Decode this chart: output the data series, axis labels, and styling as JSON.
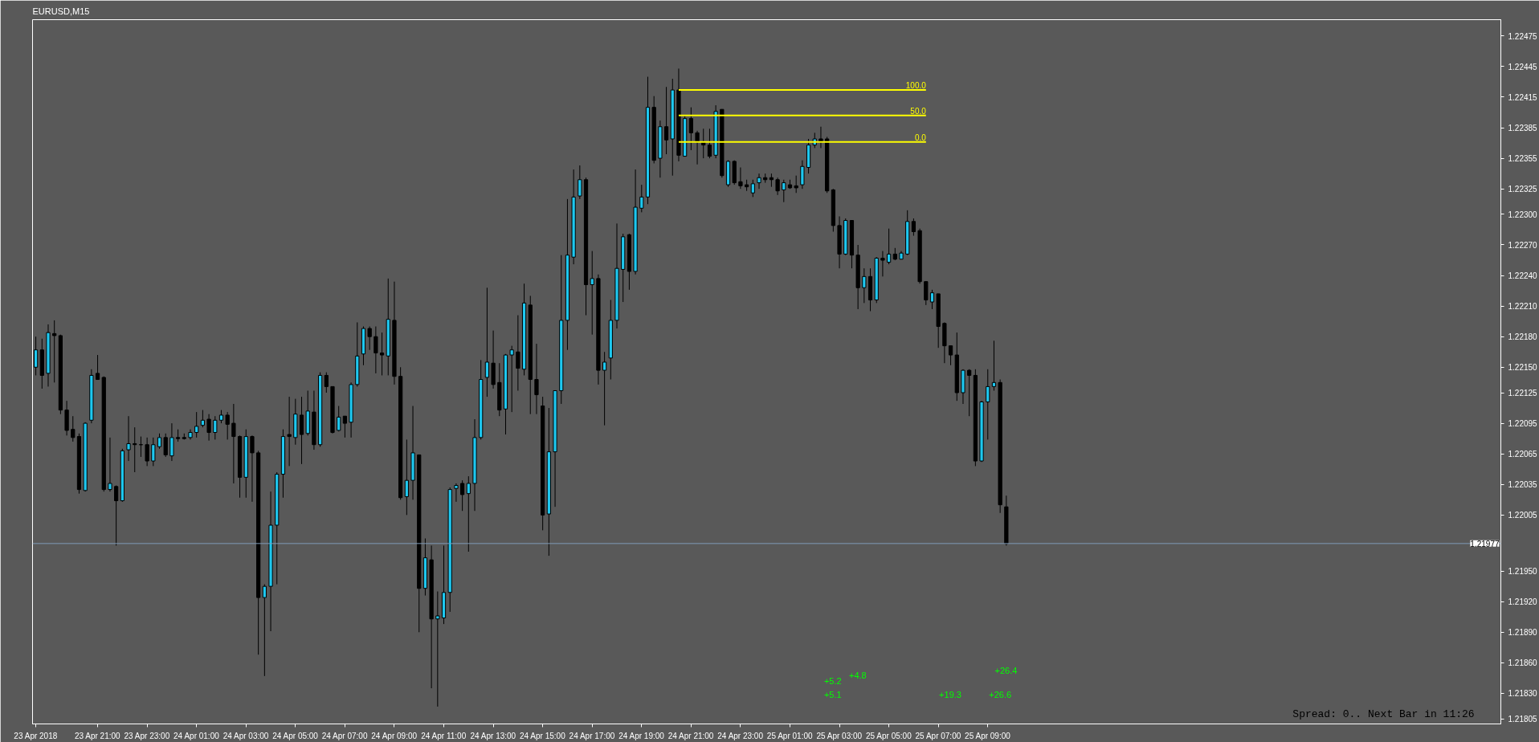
{
  "chart_data": {
    "type": "candlestick",
    "title": "EURUSD,M15",
    "colors": [
      "#1ec8f0",
      "#000000",
      "#1ec8f0",
      "#000000",
      "#000000",
      "#000000",
      "#000000",
      "#000000",
      "#1ec8f0",
      "#1ec8f0",
      "#000000",
      "#000000",
      "#1ec8f0",
      "#000000",
      "#1ec8f0",
      "#1ec8f0",
      "#000000",
      "#000000",
      "#000000",
      "#1ec8f0",
      "#1ec8f0",
      "#000000",
      "#1ec8f0",
      "#000000",
      "#000000",
      "#1ec8f0",
      "#1ec8f0",
      "#1ec8f0",
      "#000000",
      "#1ec8f0",
      "#1ec8f0",
      "#000000",
      "#000000",
      "#000000",
      "#1ec8f0",
      "#000000",
      "#000000",
      "#1ec8f0",
      "#1ec8f0",
      "#1ec8f0",
      "#1ec8f0",
      "#000000",
      "#1ec8f0",
      "#000000",
      "#1ec8f0",
      "#000000",
      "#1ec8f0",
      "#000000",
      "#000000",
      "#1ec8f0",
      "#000000",
      "#1ec8f0",
      "#1ec8f0",
      "#1ec8f0",
      "#000000",
      "#000000",
      "#000000",
      "#1ec8f0",
      "#000000",
      "#000000",
      "#1ec8f0",
      "#1ec8f0",
      "#000000",
      "#1ec8f0",
      "#000000",
      "#1ec8f0",
      "#1ec8f0",
      "#1ec8f0",
      "#1ec8f0",
      "#000000",
      "#1ec8f0",
      "#1ec8f0",
      "#1ec8f0",
      "#1ec8f0",
      "#000000",
      "#000000",
      "#1ec8f0",
      "#1ec8f0",
      "#000000",
      "#1ec8f0",
      "#000000",
      "#000000",
      "#000000",
      "#1ec8f0",
      "#1ec8f0",
      "#1ec8f0",
      "#1ec8f0",
      "#1ec8f0",
      "#1ec8f0",
      "#000000",
      "#1ec8f0",
      "#000000",
      "#1ec8f0",
      "#1ec8f0",
      "#1ec8f0",
      "#1ec8f0",
      "#000000",
      "#1ec8f0",
      "#1ec8f0",
      "#1ec8f0",
      "#000000",
      "#1ec8f0",
      "#000000",
      "#1ec8f0",
      "#000000",
      "#1ec8f0",
      "#000000",
      "#000000",
      "#000000",
      "#000000",
      "#1ec8f0",
      "#000000",
      "#1ec8f0",
      "#000000",
      "#000000",
      "#000000",
      "#1ec8f0",
      "#1ec8f0",
      "#000000",
      "#000000",
      "#000000",
      "#1ec8f0",
      "#000000",
      "#000000",
      "#1ec8f0",
      "#1ec8f0",
      "#1ec8f0",
      "#000000",
      "#000000",
      "#000000",
      "#000000",
      "#1ec8f0",
      "#000000",
      "#000000",
      "#1ec8f0",
      "#000000",
      "#1ec8f0",
      "#000000",
      "#1ec8f0",
      "#000000",
      "#1ec8f0",
      "#1ec8f0",
      "#000000",
      "#000000",
      "#000000",
      "#1ec8f0",
      "#000000",
      "#000000",
      "#000000",
      "#000000",
      "#1ec8f0",
      "#000000",
      "#000000",
      "#1ec8f0",
      "#1ec8f0",
      "#1ec8f0",
      "#000000",
      "#000000"
    ],
    "x": [
      "2018-04-23T18:30",
      "2018-04-23T18:45",
      "2018-04-23T19:00",
      "2018-04-23T19:15",
      "2018-04-23T19:30",
      "2018-04-23T19:45",
      "2018-04-23T20:00",
      "2018-04-23T20:15",
      "2018-04-23T20:30",
      "2018-04-23T20:45",
      "2018-04-23T21:00",
      "2018-04-23T21:15",
      "2018-04-23T21:30",
      "2018-04-23T21:45",
      "2018-04-23T22:00",
      "2018-04-23T22:15",
      "2018-04-23T22:30",
      "2018-04-23T22:45",
      "2018-04-23T23:00",
      "2018-04-23T23:15",
      "2018-04-23T23:30",
      "2018-04-23T23:45",
      "2018-04-24T00:00",
      "2018-04-24T00:15",
      "2018-04-24T00:30",
      "2018-04-24T00:45",
      "2018-04-24T01:00",
      "2018-04-24T01:15",
      "2018-04-24T01:30",
      "2018-04-24T01:45",
      "2018-04-24T02:00",
      "2018-04-24T02:15",
      "2018-04-24T02:30",
      "2018-04-24T02:45",
      "2018-04-24T03:00",
      "2018-04-24T03:15",
      "2018-04-24T03:30",
      "2018-04-24T03:45",
      "2018-04-24T04:00",
      "2018-04-24T04:15",
      "2018-04-24T04:30",
      "2018-04-24T04:45",
      "2018-04-24T05:00",
      "2018-04-24T05:15",
      "2018-04-24T05:30",
      "2018-04-24T05:45",
      "2018-04-24T06:00",
      "2018-04-24T06:15",
      "2018-04-24T06:30",
      "2018-04-24T06:45",
      "2018-04-24T07:00",
      "2018-04-24T07:15",
      "2018-04-24T07:30",
      "2018-04-24T07:45",
      "2018-04-24T08:00",
      "2018-04-24T08:15",
      "2018-04-24T08:30",
      "2018-04-24T08:45",
      "2018-04-24T09:00",
      "2018-04-24T09:15",
      "2018-04-24T09:30",
      "2018-04-24T09:45",
      "2018-04-24T10:00",
      "2018-04-24T10:15",
      "2018-04-24T10:30",
      "2018-04-24T10:45",
      "2018-04-24T11:00",
      "2018-04-24T11:15",
      "2018-04-24T11:30",
      "2018-04-24T11:45",
      "2018-04-24T12:00",
      "2018-04-24T12:15",
      "2018-04-24T12:30",
      "2018-04-24T12:45",
      "2018-04-24T13:00",
      "2018-04-24T13:15",
      "2018-04-24T13:30",
      "2018-04-24T13:45",
      "2018-04-24T14:00",
      "2018-04-24T14:15",
      "2018-04-24T14:30",
      "2018-04-24T14:45",
      "2018-04-24T15:00",
      "2018-04-24T15:15",
      "2018-04-24T15:30",
      "2018-04-24T15:45",
      "2018-04-24T16:00",
      "2018-04-24T16:15",
      "2018-04-24T16:30",
      "2018-04-24T16:45",
      "2018-04-24T17:00",
      "2018-04-24T17:15",
      "2018-04-24T17:30",
      "2018-04-24T17:45",
      "2018-04-24T18:00",
      "2018-04-24T18:15",
      "2018-04-24T18:30",
      "2018-04-24T18:45",
      "2018-04-24T19:00",
      "2018-04-24T19:15",
      "2018-04-24T19:30",
      "2018-04-24T19:45",
      "2018-04-24T20:00",
      "2018-04-24T20:15",
      "2018-04-24T20:30",
      "2018-04-24T20:45",
      "2018-04-24T21:00",
      "2018-04-24T21:15",
      "2018-04-24T21:30",
      "2018-04-24T21:45",
      "2018-04-24T22:00",
      "2018-04-24T22:15",
      "2018-04-24T22:30",
      "2018-04-24T22:45",
      "2018-04-24T23:00",
      "2018-04-24T23:15",
      "2018-04-24T23:30",
      "2018-04-24T23:45",
      "2018-04-25T00:00",
      "2018-04-25T00:15",
      "2018-04-25T00:30",
      "2018-04-25T00:45",
      "2018-04-25T01:00",
      "2018-04-25T01:15",
      "2018-04-25T01:30",
      "2018-04-25T01:45",
      "2018-04-25T02:00",
      "2018-04-25T02:15",
      "2018-04-25T02:30",
      "2018-04-25T02:45",
      "2018-04-25T03:00",
      "2018-04-25T03:15",
      "2018-04-25T03:30",
      "2018-04-25T03:45",
      "2018-04-25T04:00",
      "2018-04-25T04:15",
      "2018-04-25T04:30",
      "2018-04-25T04:45",
      "2018-04-25T05:00",
      "2018-04-25T05:15",
      "2018-04-25T05:30",
      "2018-04-25T05:45",
      "2018-04-25T06:00",
      "2018-04-25T06:15",
      "2018-04-25T06:30",
      "2018-04-25T06:45",
      "2018-04-25T07:00",
      "2018-04-25T07:15",
      "2018-04-25T07:30",
      "2018-04-25T07:45",
      "2018-04-25T08:00",
      "2018-04-25T08:15",
      "2018-04-25T08:30",
      "2018-04-25T08:45",
      "2018-04-25T09:00",
      "2018-04-25T09:15",
      "2018-04-25T09:30",
      "2018-04-25T09:45"
    ],
    "ohlc": [
      [
        1.2215,
        1.2218,
        1.22142,
        1.22167
      ],
      [
        1.22167,
        1.22178,
        1.22129,
        1.22142
      ],
      [
        1.22144,
        1.22192,
        1.22131,
        1.22184
      ],
      [
        1.22183,
        1.22196,
        1.22135,
        1.22181
      ],
      [
        1.22181,
        1.22182,
        1.22104,
        1.22108
      ],
      [
        1.22108,
        1.22117,
        1.22083,
        1.22088
      ],
      [
        1.22089,
        1.22102,
        1.22077,
        1.22081
      ],
      [
        1.22082,
        1.22085,
        1.22026,
        1.2203
      ],
      [
        1.22029,
        1.22096,
        1.22028,
        1.22095
      ],
      [
        1.22098,
        1.22148,
        1.22095,
        1.22142
      ],
      [
        1.22144,
        1.22162,
        1.22138,
        1.22138
      ],
      [
        1.2214,
        1.22141,
        1.22028,
        1.2203
      ],
      [
        1.2203,
        1.22081,
        1.22028,
        1.22036
      ],
      [
        1.22033,
        1.22034,
        1.21975,
        1.22019
      ],
      [
        1.22019,
        1.2207,
        1.22018,
        1.22068
      ],
      [
        1.22069,
        1.22102,
        1.22058,
        1.22075
      ],
      [
        1.22075,
        1.22091,
        1.22047,
        1.22074
      ],
      [
        1.22074,
        1.22082,
        1.22062,
        1.22074
      ],
      [
        1.22074,
        1.22081,
        1.22053,
        1.22058
      ],
      [
        1.22058,
        1.22081,
        1.22053,
        1.22074
      ],
      [
        1.22072,
        1.22085,
        1.2207,
        1.22081
      ],
      [
        1.22081,
        1.22085,
        1.22062,
        1.22064
      ],
      [
        1.22063,
        1.22095,
        1.22058,
        1.22081
      ],
      [
        1.22081,
        1.22089,
        1.22077,
        1.2208
      ],
      [
        1.22081,
        1.22085,
        1.22079,
        1.2208
      ],
      [
        1.22081,
        1.22089,
        1.22079,
        1.22086
      ],
      [
        1.22086,
        1.22106,
        1.22081,
        1.22092
      ],
      [
        1.22093,
        1.22108,
        1.22091,
        1.22098
      ],
      [
        1.22099,
        1.22104,
        1.22078,
        1.22086
      ],
      [
        1.22086,
        1.22102,
        1.22079,
        1.22098
      ],
      [
        1.22098,
        1.22108,
        1.22095,
        1.22103
      ],
      [
        1.22103,
        1.22106,
        1.22079,
        1.22094
      ],
      [
        1.22095,
        1.22114,
        1.22036,
        1.22082
      ],
      [
        1.22082,
        1.22083,
        1.22022,
        1.22042
      ],
      [
        1.22042,
        1.22089,
        1.22022,
        1.22082
      ],
      [
        1.22082,
        1.22083,
        1.22018,
        1.22066
      ],
      [
        1.22066,
        1.22068,
        1.21868,
        1.21924
      ],
      [
        1.21924,
        1.21937,
        1.21847,
        1.21935
      ],
      [
        1.21935,
        1.22028,
        1.21891,
        1.21995
      ],
      [
        1.21995,
        1.22047,
        1.21937,
        1.22045
      ],
      [
        1.22045,
        1.22089,
        1.22022,
        1.22082
      ],
      [
        1.22084,
        1.22121,
        1.22053,
        1.22082
      ],
      [
        1.22081,
        1.22119,
        1.22074,
        1.22104
      ],
      [
        1.22103,
        1.22121,
        1.22055,
        1.22084
      ],
      [
        1.22085,
        1.22127,
        1.22083,
        1.22107
      ],
      [
        1.22106,
        1.22127,
        1.22069,
        1.22074
      ],
      [
        1.22074,
        1.22145,
        1.22072,
        1.22142
      ],
      [
        1.22142,
        1.22145,
        1.22125,
        1.22131
      ],
      [
        1.22131,
        1.22131,
        1.22085,
        1.22086
      ],
      [
        1.22088,
        1.22112,
        1.22087,
        1.22101
      ],
      [
        1.22102,
        1.22102,
        1.22081,
        1.22095
      ],
      [
        1.22096,
        1.22135,
        1.22081,
        1.22133
      ],
      [
        1.22133,
        1.22194,
        1.22131,
        1.22161
      ],
      [
        1.22163,
        1.2219,
        1.22152,
        1.22188
      ],
      [
        1.22188,
        1.2219,
        1.22167,
        1.2218
      ],
      [
        1.2218,
        1.2219,
        1.22144,
        1.22164
      ],
      [
        1.22164,
        1.22184,
        1.22142,
        1.22162
      ],
      [
        1.22161,
        1.22237,
        1.22142,
        1.22197
      ],
      [
        1.22196,
        1.22234,
        1.22133,
        1.22141
      ],
      [
        1.22141,
        1.2215,
        1.2202,
        1.22022
      ],
      [
        1.22023,
        1.22079,
        1.22005,
        1.22039
      ],
      [
        1.22039,
        1.22112,
        1.2202,
        1.22066
      ],
      [
        1.22064,
        1.22064,
        1.2189,
        1.21933
      ],
      [
        1.21933,
        1.21982,
        1.21926,
        1.21963
      ],
      [
        1.21961,
        1.21975,
        1.21835,
        1.21903
      ],
      [
        1.21903,
        1.2193,
        1.21817,
        1.21906
      ],
      [
        1.21904,
        1.21975,
        1.21898,
        1.21929
      ],
      [
        1.21929,
        1.22032,
        1.2191,
        1.2203
      ],
      [
        1.22031,
        1.22036,
        1.22018,
        1.22034
      ],
      [
        1.22036,
        1.22039,
        1.22009,
        1.22025
      ],
      [
        1.22026,
        1.22043,
        1.21969,
        1.22036
      ],
      [
        1.22036,
        1.22099,
        1.22009,
        1.22081
      ],
      [
        1.22081,
        1.22157,
        1.22079,
        1.22138
      ],
      [
        1.2214,
        1.22228,
        1.22121,
        1.22155
      ],
      [
        1.22154,
        1.22186,
        1.22129,
        1.22133
      ],
      [
        1.22135,
        1.22154,
        1.22102,
        1.22108
      ],
      [
        1.22109,
        1.22163,
        1.22084,
        1.22162
      ],
      [
        1.22162,
        1.22171,
        1.22106,
        1.22167
      ],
      [
        1.22165,
        1.22201,
        1.22127,
        1.22149
      ],
      [
        1.22148,
        1.22232,
        1.22142,
        1.22213
      ],
      [
        1.22211,
        1.2222,
        1.22104,
        1.22138
      ],
      [
        1.22138,
        1.22173,
        1.22104,
        1.22123
      ],
      [
        1.22112,
        1.22121,
        1.2199,
        1.22005
      ],
      [
        1.22006,
        1.2211,
        1.21965,
        1.22067
      ],
      [
        1.22067,
        1.22127,
        1.22013,
        1.22127
      ],
      [
        1.22127,
        1.2226,
        1.22114,
        1.22196
      ],
      [
        1.22196,
        1.22315,
        1.22167,
        1.2226
      ],
      [
        1.22258,
        1.22344,
        1.22251,
        1.22317
      ],
      [
        1.22318,
        1.22348,
        1.22315,
        1.22334
      ],
      [
        1.22334,
        1.22336,
        1.22201,
        1.22231
      ],
      [
        1.22231,
        1.22264,
        1.22182,
        1.22237
      ],
      [
        1.22237,
        1.22241,
        1.22133,
        1.22147
      ],
      [
        1.22147,
        1.22165,
        1.22093,
        1.22155
      ],
      [
        1.22159,
        1.22216,
        1.22138,
        1.22196
      ],
      [
        1.22196,
        1.22291,
        1.22188,
        1.22247
      ],
      [
        1.22246,
        1.22281,
        1.22214,
        1.22278
      ],
      [
        1.2228,
        1.22281,
        1.22226,
        1.22244
      ],
      [
        1.22244,
        1.22344,
        1.22241,
        1.22307
      ],
      [
        1.22306,
        1.22329,
        1.22302,
        1.22317
      ],
      [
        1.22317,
        1.22435,
        1.2231,
        1.22405
      ],
      [
        1.22405,
        1.22416,
        1.2235,
        1.22353
      ],
      [
        1.22355,
        1.22392,
        1.22336,
        1.22386
      ],
      [
        1.22386,
        1.22425,
        1.22359,
        1.22373
      ],
      [
        1.22374,
        1.22433,
        1.22338,
        1.22422
      ],
      [
        1.22422,
        1.22443,
        1.22352,
        1.22358
      ],
      [
        1.22357,
        1.22397,
        1.22357,
        1.22394
      ],
      [
        1.22394,
        1.22405,
        1.22363,
        1.2238
      ],
      [
        1.2238,
        1.22382,
        1.22349,
        1.22371
      ],
      [
        1.22371,
        1.22384,
        1.22355,
        1.22368
      ],
      [
        1.22368,
        1.22384,
        1.22355,
        1.22357
      ],
      [
        1.22358,
        1.22407,
        1.22355,
        1.22401
      ],
      [
        1.22403,
        1.22403,
        1.22336,
        1.22338
      ],
      [
        1.22329,
        1.22353,
        1.22327,
        1.22352
      ],
      [
        1.22352,
        1.22353,
        1.22329,
        1.22331
      ],
      [
        1.22332,
        1.22346,
        1.22325,
        1.22328
      ],
      [
        1.22329,
        1.22334,
        1.22323,
        1.22327
      ],
      [
        1.22321,
        1.22334,
        1.22317,
        1.2233
      ],
      [
        1.22331,
        1.2234,
        1.22325,
        1.22336
      ],
      [
        1.22336,
        1.2234,
        1.22331,
        1.22334
      ],
      [
        1.22336,
        1.2234,
        1.22327,
        1.22334
      ],
      [
        1.22334,
        1.22336,
        1.22319,
        1.22323
      ],
      [
        1.22324,
        1.22334,
        1.22312,
        1.22331
      ],
      [
        1.22329,
        1.22334,
        1.22325,
        1.22326
      ],
      [
        1.22328,
        1.22338,
        1.22321,
        1.22326
      ],
      [
        1.22329,
        1.22353,
        1.22325,
        1.22347
      ],
      [
        1.22346,
        1.22374,
        1.2234,
        1.22368
      ],
      [
        1.22368,
        1.2238,
        1.22365,
        1.22374
      ],
      [
        1.22374,
        1.22386,
        1.22365,
        1.22371
      ],
      [
        1.22374,
        1.22376,
        1.22321,
        1.22323
      ],
      [
        1.22324,
        1.22325,
        1.22283,
        1.22289
      ],
      [
        1.22289,
        1.22298,
        1.22247,
        1.22261
      ],
      [
        1.22261,
        1.22296,
        1.2226,
        1.22294
      ],
      [
        1.22294,
        1.22294,
        1.22247,
        1.2226
      ],
      [
        1.2226,
        1.2227,
        1.22207,
        1.22228
      ],
      [
        1.22228,
        1.22247,
        1.22213,
        1.22239
      ],
      [
        1.22239,
        1.22247,
        1.22205,
        1.22216
      ],
      [
        1.22216,
        1.22258,
        1.22213,
        1.22257
      ],
      [
        1.22257,
        1.22264,
        1.22239,
        1.22255
      ],
      [
        1.22253,
        1.22286,
        1.22251,
        1.22261
      ],
      [
        1.22261,
        1.22267,
        1.22255,
        1.22256
      ],
      [
        1.22256,
        1.22264,
        1.22256,
        1.22262
      ],
      [
        1.22261,
        1.22304,
        1.2226,
        1.22293
      ],
      [
        1.22293,
        1.22296,
        1.22279,
        1.22283
      ],
      [
        1.22284,
        1.22286,
        1.22232,
        1.22234
      ],
      [
        1.22234,
        1.22234,
        1.22211,
        1.22216
      ],
      [
        1.22214,
        1.22226,
        1.22207,
        1.22223
      ],
      [
        1.22222,
        1.22222,
        1.22169,
        1.2219
      ],
      [
        1.22193,
        1.22194,
        1.22154,
        1.22171
      ],
      [
        1.22171,
        1.22171,
        1.22152,
        1.22162
      ],
      [
        1.22162,
        1.22184,
        1.22117,
        1.22125
      ],
      [
        1.22125,
        1.22148,
        1.22114,
        1.22147
      ],
      [
        1.22147,
        1.22148,
        1.22102,
        1.22142
      ],
      [
        1.22142,
        1.22148,
        1.22053,
        1.22058
      ],
      [
        1.22058,
        1.22117,
        1.22057,
        1.22116
      ],
      [
        1.22116,
        1.22148,
        1.22079,
        1.22131
      ],
      [
        1.22131,
        1.22176,
        1.22127,
        1.22135
      ],
      [
        1.22135,
        1.22138,
        1.22007,
        1.22015
      ],
      [
        1.22013,
        1.22024,
        1.21975,
        1.21977
      ]
    ],
    "series": [
      {
        "type": "line",
        "name": "100.0",
        "color": "#ffff00",
        "x": [
          "2018-04-24T20:30",
          "2018-04-25T06:30"
        ],
        "values": [
          1.22422,
          1.22422
        ]
      },
      {
        "type": "line",
        "name": "50.0",
        "color": "#ffff00",
        "x": [
          "2018-04-24T20:30",
          "2018-04-25T06:30"
        ],
        "values": [
          1.22397,
          1.22397
        ]
      },
      {
        "type": "line",
        "name": "0.0",
        "color": "#ffff00",
        "x": [
          "2018-04-24T20:30",
          "2018-04-25T06:30"
        ],
        "values": [
          1.22371,
          1.22371
        ]
      }
    ],
    "ref_lines": [
      {
        "axis": "y",
        "value": 1.21977,
        "label": "1.21977",
        "color": "#7f9bb8"
      }
    ],
    "xlim": [
      "2018-04-23T18:22",
      "2018-04-26T05:45"
    ],
    "xticks": [
      {
        "value": "2018-04-23T18:30",
        "label": "23 Apr 2018"
      },
      {
        "value": "2018-04-23T21:00",
        "label": "23 Apr 21:00"
      },
      {
        "value": "2018-04-23T23:00",
        "label": "23 Apr 23:00"
      },
      {
        "value": "2018-04-24T01:00",
        "label": "24 Apr 01:00"
      },
      {
        "value": "2018-04-24T03:00",
        "label": "24 Apr 03:00"
      },
      {
        "value": "2018-04-24T05:00",
        "label": "24 Apr 05:00"
      },
      {
        "value": "2018-04-24T07:00",
        "label": "24 Apr 07:00"
      },
      {
        "value": "2018-04-24T09:00",
        "label": "24 Apr 09:00"
      },
      {
        "value": "2018-04-24T11:00",
        "label": "24 Apr 11:00"
      },
      {
        "value": "2018-04-24T13:00",
        "label": "24 Apr 13:00"
      },
      {
        "value": "2018-04-24T15:00",
        "label": "24 Apr 15:00"
      },
      {
        "value": "2018-04-24T17:00",
        "label": "24 Apr 17:00"
      },
      {
        "value": "2018-04-24T19:00",
        "label": "24 Apr 19:00"
      },
      {
        "value": "2018-04-24T21:00",
        "label": "24 Apr 21:00"
      },
      {
        "value": "2018-04-24T23:00",
        "label": "24 Apr 23:00"
      },
      {
        "value": "2018-04-25T01:00",
        "label": "25 Apr 01:00"
      },
      {
        "value": "2018-04-25T03:00",
        "label": "25 Apr 03:00"
      },
      {
        "value": "2018-04-25T05:00",
        "label": "25 Apr 05:00"
      },
      {
        "value": "2018-04-25T07:00",
        "label": "25 Apr 07:00"
      },
      {
        "value": "2018-04-25T09:00",
        "label": "25 Apr 09:00"
      }
    ],
    "ylim": [
      1.218,
      1.22491
    ],
    "yticks": [
      1.22475,
      1.22445,
      1.22415,
      1.22385,
      1.22355,
      1.22325,
      {
        "value": 1.223,
        "label": "1.22300"
      },
      {
        "value": 1.2227,
        "label": "1.22270"
      },
      {
        "value": 1.2224,
        "label": "1.22240"
      },
      {
        "value": 1.2221,
        "label": "1.22210"
      },
      {
        "value": 1.2218,
        "label": "1.22180"
      },
      {
        "value": 1.2215,
        "label": "1.22150"
      },
      1.22125,
      1.22095,
      1.22065,
      1.22035,
      1.22005,
      {
        "value": 1.2195,
        "label": "1.21950"
      },
      {
        "value": 1.2192,
        "label": "1.21920"
      },
      {
        "value": 1.2189,
        "label": "1.21890"
      },
      {
        "value": 1.2186,
        "label": "1.21860"
      },
      {
        "value": 1.2183,
        "label": "1.21830"
      },
      1.21805
    ],
    "annotations": [
      "+5.2",
      "+4.8",
      "+5.1",
      "+19.3",
      "+26.4",
      "+26.6",
      "Spread: 0.. Next Bar in 11:26"
    ]
  }
}
